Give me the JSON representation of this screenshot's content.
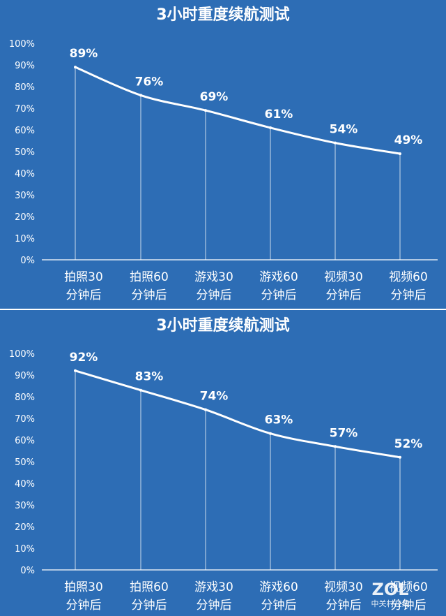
{
  "chart_data": [
    {
      "type": "line",
      "title": "3小时重度续航测试",
      "categories": [
        [
          "拍照30",
          "分钟后"
        ],
        [
          "拍照60",
          "分钟后"
        ],
        [
          "游戏30",
          "分钟后"
        ],
        [
          "游戏60",
          "分钟后"
        ],
        [
          "视频30",
          "分钟后"
        ],
        [
          "视频60",
          "分钟后"
        ]
      ],
      "values": [
        89,
        76,
        69,
        61,
        54,
        49
      ],
      "data_labels": [
        "89%",
        "76%",
        "69%",
        "61%",
        "54%",
        "49%"
      ],
      "y_ticks": [
        "0%",
        "10%",
        "20%",
        "30%",
        "40%",
        "50%",
        "60%",
        "70%",
        "80%",
        "90%",
        "100%"
      ],
      "ylim": [
        0,
        100
      ],
      "grid": false,
      "colors": {
        "background": "#2d6db5",
        "line": "#ffffff",
        "text": "#ffffff"
      }
    },
    {
      "type": "line",
      "title": "3小时重度续航测试",
      "categories": [
        [
          "拍照30",
          "分钟后"
        ],
        [
          "拍照60",
          "分钟后"
        ],
        [
          "游戏30",
          "分钟后"
        ],
        [
          "游戏60",
          "分钟后"
        ],
        [
          "视频30",
          "分钟后"
        ],
        [
          "视频60",
          "分钟后"
        ]
      ],
      "values": [
        92,
        83,
        74,
        63,
        57,
        52
      ],
      "data_labels": [
        "92%",
        "83%",
        "74%",
        "63%",
        "57%",
        "52%"
      ],
      "y_ticks": [
        "0%",
        "10%",
        "20%",
        "30%",
        "40%",
        "50%",
        "60%",
        "70%",
        "80%",
        "90%",
        "100%"
      ],
      "ylim": [
        0,
        100
      ],
      "grid": false,
      "colors": {
        "background": "#2d6db5",
        "line": "#ffffff",
        "text": "#ffffff"
      }
    }
  ],
  "watermark": {
    "logo": "ZOL",
    "subtitle": "中关村在线"
  }
}
